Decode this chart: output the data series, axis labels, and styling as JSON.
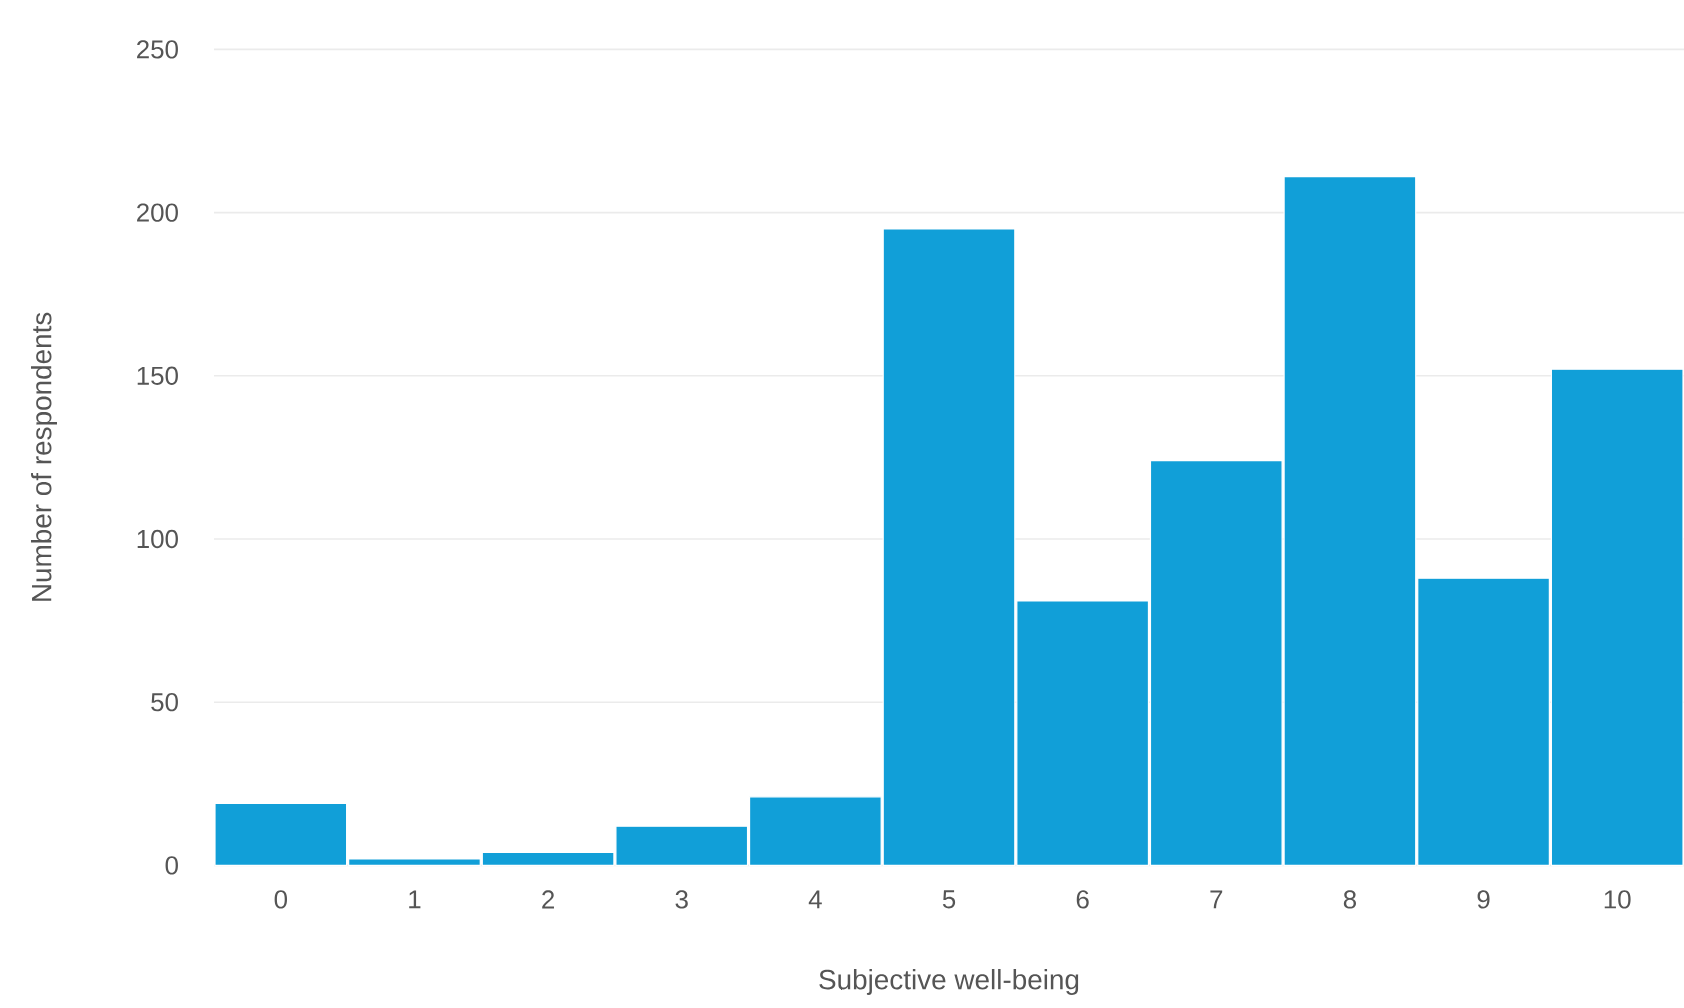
{
  "chart_data": {
    "type": "bar",
    "xlabel": "Subjective well-being",
    "ylabel": "Number of respondents",
    "categories": [
      "0",
      "1",
      "2",
      "3",
      "4",
      "5",
      "6",
      "7",
      "8",
      "9",
      "10"
    ],
    "values": [
      19,
      2,
      4,
      12,
      21,
      195,
      81,
      124,
      211,
      88,
      152
    ],
    "color": "#119fd8",
    "ylim": [
      0,
      250
    ],
    "yticks": [
      0,
      50,
      100,
      150,
      200,
      250
    ],
    "grid": "y"
  }
}
